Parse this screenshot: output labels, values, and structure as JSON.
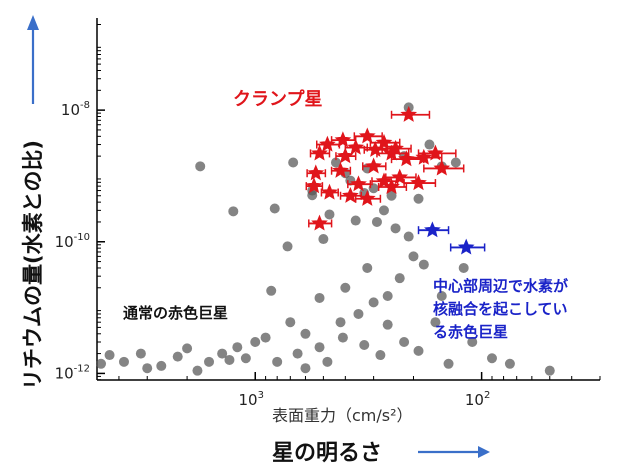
{
  "chart_data": {
    "type": "scatter",
    "xlabel": "表面重力（cm/s²）",
    "ylabel_big": "リチウムの量(水素との比)",
    "xlabel_big": "星の明るさ",
    "x_scale": "log-reversed",
    "y_scale": "log",
    "xlim": [
      5000,
      30
    ],
    "ylim": [
      7.94e-13,
      2.51e-07
    ],
    "x_ticks": [
      {
        "value": 1000,
        "base": "10",
        "exp": "3"
      },
      {
        "value": 100,
        "base": "10",
        "exp": "2"
      }
    ],
    "y_ticks": [
      {
        "value": 1e-12,
        "base": "10",
        "exp": "-12"
      },
      {
        "value": 1e-10,
        "base": "10",
        "exp": "-10"
      },
      {
        "value": 1e-08,
        "base": "10",
        "exp": "-8"
      }
    ],
    "annotations": {
      "clump": "クランプ星",
      "normal": "通常の赤色巨星",
      "core_lines": [
        "中心部周辺で水素が",
        "核融合を起こしてい",
        "る赤色巨星"
      ]
    },
    "colors": {
      "gray_points": "#555555",
      "clump": "#e0151b",
      "core": "#1a23c8",
      "arrow": "#3a6fc9"
    },
    "series": [
      {
        "marker": "circle",
        "color": "#555555",
        "points": [
          [
            1750,
            1.4e-09
          ],
          [
            1250,
            2.9e-10
          ],
          [
            820,
            3.2e-10
          ],
          [
            680,
            1.6e-09
          ],
          [
            560,
            5.1e-10
          ],
          [
            470,
            2.6e-10
          ],
          [
            440,
            1.6e-09
          ],
          [
            400,
            1.1e-09
          ],
          [
            360,
            2.1e-10
          ],
          [
            320,
            1.3e-09
          ],
          [
            300,
            6.5e-10
          ],
          [
            270,
            3e-10
          ],
          [
            250,
            5e-10
          ],
          [
            220,
            2e-09
          ],
          [
            210,
            1.1e-08
          ],
          [
            190,
            4.5e-10
          ],
          [
            170,
            3e-09
          ],
          [
            150,
            1.4e-09
          ],
          [
            130,
            1.6e-09
          ],
          [
            720,
            8.5e-11
          ],
          [
            320,
            4e-11
          ],
          [
            260,
            1.5e-11
          ],
          [
            230,
            2.8e-11
          ],
          [
            180,
            4.5e-11
          ],
          [
            150,
            1.5e-11
          ],
          [
            120,
            4e-11
          ],
          [
            200,
            6e-11
          ],
          [
            300,
            1.2e-11
          ],
          [
            400,
            2e-11
          ],
          [
            520,
            1.4e-11
          ],
          [
            600,
            4e-12
          ],
          [
            700,
            6e-12
          ],
          [
            850,
            1.8e-11
          ],
          [
            420,
            6e-12
          ],
          [
            350,
            8e-12
          ],
          [
            260,
            5.5e-12
          ],
          [
            160,
            6e-12
          ],
          [
            110,
            3e-12
          ],
          [
            90,
            1.7e-12
          ],
          [
            220,
            3e-12
          ],
          [
            1000,
            3e-12
          ],
          [
            1400,
            2e-12
          ],
          [
            1600,
            1.5e-12
          ],
          [
            2200,
            1.8e-12
          ],
          [
            2600,
            1.3e-12
          ],
          [
            3200,
            2e-12
          ],
          [
            3800,
            1.5e-12
          ],
          [
            4400,
            1.9e-12
          ],
          [
            500,
            1.1e-10
          ],
          [
            560,
            6e-10
          ],
          [
            380,
            8.5e-10
          ],
          [
            330,
            5.5e-10
          ],
          [
            240,
            1.6e-10
          ],
          [
            210,
            1.2e-10
          ],
          [
            290,
            2e-10
          ],
          [
            900,
            3.5e-12
          ],
          [
            1100,
            1.7e-12
          ],
          [
            1300,
            1.6e-12
          ],
          [
            650,
            2e-12
          ],
          [
            520,
            2.5e-12
          ],
          [
            480,
            1.5e-12
          ],
          [
            330,
            2.7e-12
          ],
          [
            280,
            1.9e-12
          ],
          [
            190,
            2.2e-12
          ],
          [
            140,
            1.4e-12
          ],
          [
            50,
            1.1e-12
          ],
          [
            75,
            1.4e-12
          ],
          [
            2000,
            2.4e-12
          ],
          [
            3000,
            1.2e-12
          ],
          [
            4800,
            1.4e-12
          ],
          [
            1800,
            1.1e-12
          ],
          [
            1200,
            2.5e-12
          ],
          [
            800,
            1.5e-12
          ],
          [
            600,
            1.2e-12
          ],
          [
            410,
            3.5e-12
          ]
        ]
      },
      {
        "name": "クランプ星",
        "marker": "star",
        "color": "#e0151b",
        "points": [
          [
            210,
            8.5e-09,
            40
          ],
          [
            320,
            4e-09,
            45
          ],
          [
            270,
            3.2e-09,
            40
          ],
          [
            410,
            3.5e-09,
            50
          ],
          [
            480,
            3e-09,
            55
          ],
          [
            360,
            2.7e-09,
            40
          ],
          [
            295,
            2.5e-09,
            35
          ],
          [
            250,
            2.2e-09,
            40
          ],
          [
            160,
            2.2e-09,
            30
          ],
          [
            520,
            2.2e-09,
            50
          ],
          [
            400,
            2e-09,
            40
          ],
          [
            215,
            1.8e-09,
            35
          ],
          [
            150,
            1.3e-09,
            30
          ],
          [
            300,
            1.4e-09,
            35
          ],
          [
            420,
            1.2e-09,
            40
          ],
          [
            540,
            1.1e-09,
            50
          ],
          [
            230,
            9.5e-10,
            35
          ],
          [
            270,
            8.3e-10,
            35
          ],
          [
            190,
            7.8e-10,
            30
          ],
          [
            350,
            7.5e-10,
            40
          ],
          [
            250,
            6.8e-10,
            35
          ],
          [
            550,
            7e-10,
            45
          ],
          [
            470,
            5.6e-10,
            40
          ],
          [
            380,
            5e-10,
            40
          ],
          [
            320,
            4.5e-10,
            40
          ],
          [
            520,
            1.9e-10,
            60
          ],
          [
            180,
            1.9e-09,
            30
          ],
          [
            240,
            2.6e-09,
            35
          ]
        ]
      },
      {
        "name": "中心部周辺で水素が核融合を起こしている赤色巨星",
        "marker": "star",
        "color": "#1a23c8",
        "points": [
          [
            165,
            1.5e-10,
            25
          ],
          [
            117,
            8.2e-11,
            20
          ]
        ]
      }
    ]
  }
}
